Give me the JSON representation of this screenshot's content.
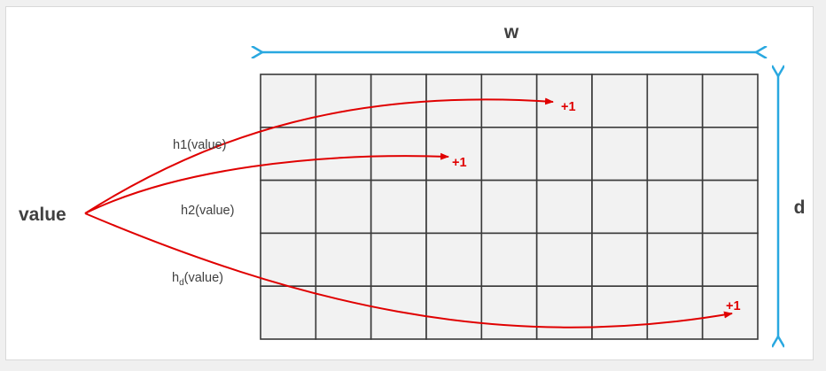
{
  "labels": {
    "width": "w",
    "depth": "d",
    "value": "value",
    "hash1": "h1(value)",
    "hash2": "h2(value)",
    "hashd_base": "h",
    "hashd_sub": "d",
    "hashd_arg": "(value)",
    "increment1": "+1",
    "increment2": "+1",
    "incrementd": "+1"
  },
  "grid": {
    "columns": 9,
    "rows": 5
  },
  "colors": {
    "arrow": "#e00000",
    "dimension": "#29a8e0",
    "cell_fill": "#f2f2f2",
    "cell_border": "#3a3a3a",
    "text": "#404040"
  }
}
